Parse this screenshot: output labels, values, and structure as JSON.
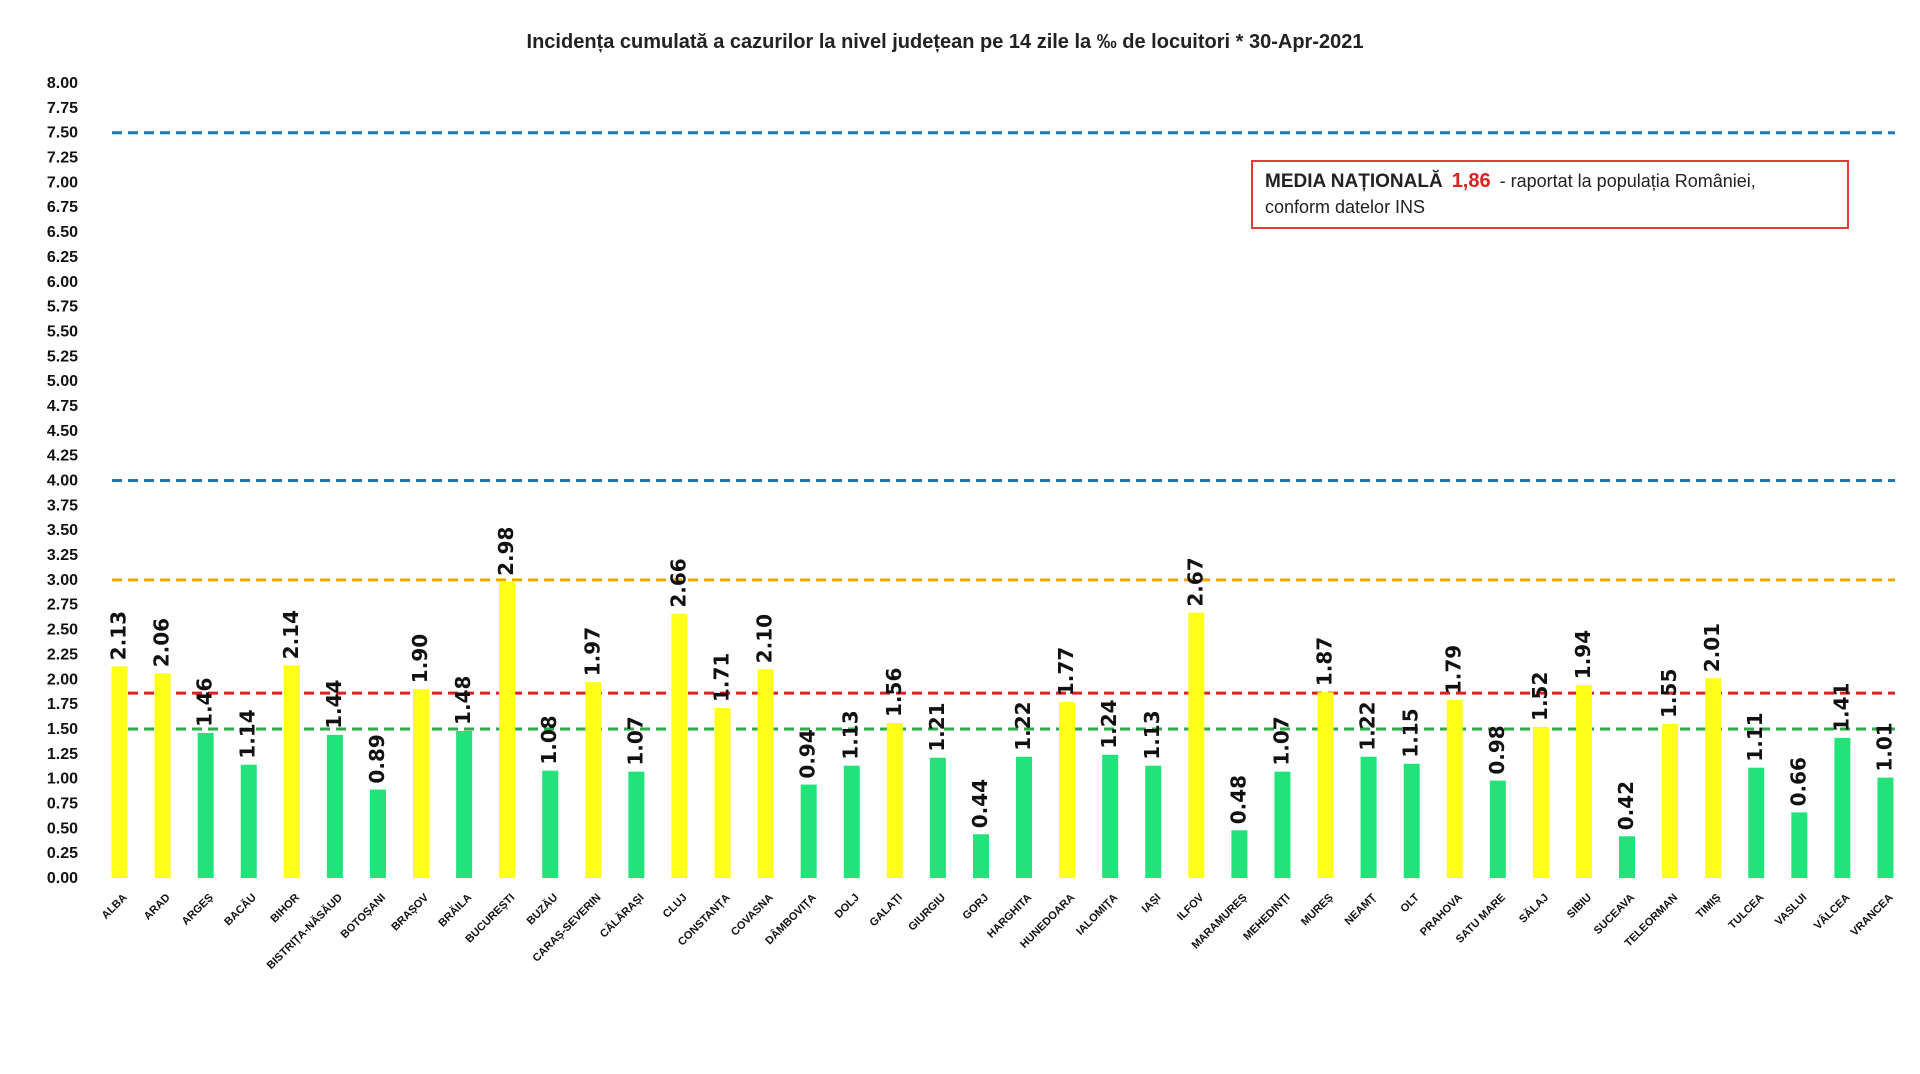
{
  "chart_data": {
    "type": "bar",
    "title": "Incidența cumulată a cazurilor la nivel județean pe 14 zile la ‰ de locuitori *   30-Apr-2021",
    "xlabel": "",
    "ylabel": "",
    "ylim": [
      0,
      8
    ],
    "yticks": [
      "0.00",
      "0.25",
      "0.50",
      "0.75",
      "1.00",
      "1.25",
      "1.50",
      "1.75",
      "2.00",
      "2.25",
      "2.50",
      "2.75",
      "3.00",
      "3.25",
      "3.50",
      "3.75",
      "4.00",
      "4.25",
      "4.50",
      "4.75",
      "5.00",
      "5.25",
      "5.50",
      "5.75",
      "6.00",
      "6.25",
      "6.50",
      "6.75",
      "7.00",
      "7.25",
      "7.50",
      "7.75",
      "8.00"
    ],
    "grid": false,
    "categories": [
      "ALBA",
      "ARAD",
      "ARGEȘ",
      "BACĂU",
      "BIHOR",
      "BISTRIȚA-NĂSĂUD",
      "BOTOȘANI",
      "BRAȘOV",
      "BRĂILA",
      "BUCUREȘTI",
      "BUZĂU",
      "CARAȘ-SEVERIN",
      "CĂLĂRAȘI",
      "CLUJ",
      "CONSTANȚA",
      "COVASNA",
      "DÂMBOVIȚA",
      "DOLJ",
      "GALAȚI",
      "GIURGIU",
      "GORJ",
      "HARGHITA",
      "HUNEDOARA",
      "IALOMIȚA",
      "IAȘI",
      "ILFOV",
      "MARAMUREȘ",
      "MEHEDINȚI",
      "MUREȘ",
      "NEAMȚ",
      "OLT",
      "PRAHOVA",
      "SATU MARE",
      "SĂLAJ",
      "SIBIU",
      "SUCEAVA",
      "TELEORMAN",
      "TIMIȘ",
      "TULCEA",
      "VASLUI",
      "VÂLCEA",
      "VRANCEA"
    ],
    "values": [
      2.13,
      2.06,
      1.46,
      1.14,
      2.14,
      1.44,
      0.89,
      1.9,
      1.48,
      2.98,
      1.08,
      1.97,
      1.07,
      2.66,
      1.71,
      2.1,
      0.94,
      1.13,
      1.56,
      1.21,
      0.44,
      1.22,
      1.77,
      1.24,
      1.13,
      2.67,
      0.48,
      1.07,
      1.87,
      1.22,
      1.15,
      1.79,
      0.98,
      1.52,
      1.94,
      0.42,
      1.55,
      2.01,
      1.11,
      0.66,
      1.41,
      1.01
    ],
    "value_labels": [
      "2.13",
      "2.06",
      "1.46",
      "1.14",
      "2.14",
      "1.44",
      "0.89",
      "1.90",
      "1.48",
      "2.98",
      "1.08",
      "1.97",
      "1.07",
      "2.66",
      "1.71",
      "2.10",
      "0.94",
      "1.13",
      "1.56",
      "1.21",
      "0.44",
      "1.22",
      "1.77",
      "1.24",
      "1.13",
      "2.67",
      "0.48",
      "1.07",
      "1.87",
      "1.22",
      "1.15",
      "1.79",
      "0.98",
      "1.52",
      "1.94",
      "0.42",
      "1.55",
      "2.01",
      "1.11",
      "0.66",
      "1.41",
      "1.01"
    ],
    "colors": {
      "low": "#22e27a",
      "mid": "#ffff1a"
    },
    "color_threshold": 1.5,
    "reference_lines": [
      {
        "value": 7.5,
        "color": "#1f77b4"
      },
      {
        "value": 4.0,
        "color": "#1f77b4"
      },
      {
        "value": 3.0,
        "color": "#f0a800"
      },
      {
        "value": 1.86,
        "color": "#e02020"
      },
      {
        "value": 1.5,
        "color": "#2eaa48"
      }
    ]
  },
  "annotation": {
    "label": "MEDIA NAȚIONALĂ",
    "value": "1,86",
    "text1": "- raportat la populația României,",
    "text2": "conform datelor INS"
  }
}
